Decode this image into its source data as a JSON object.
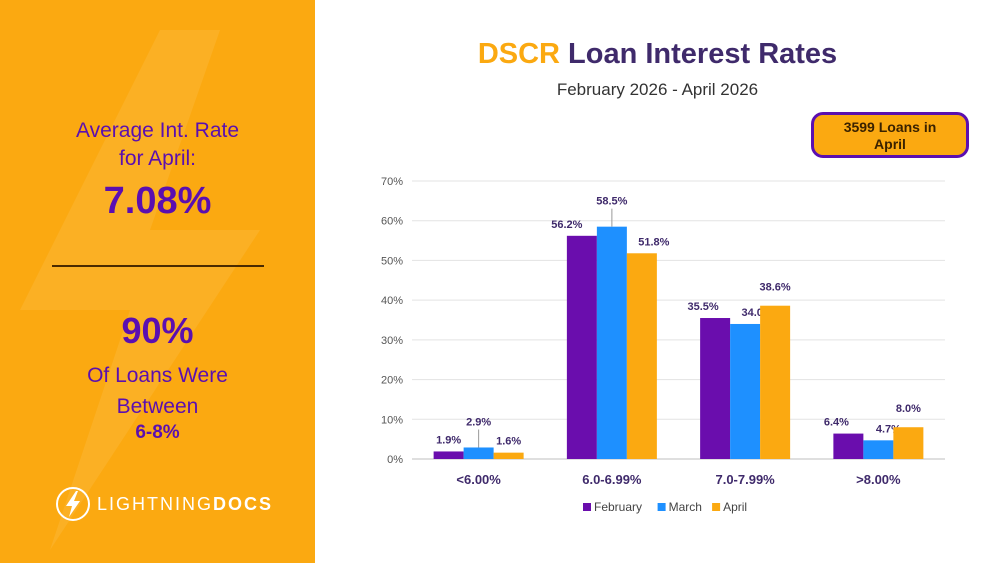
{
  "left_panel": {
    "avg_label_line1": "Average Int. Rate",
    "avg_label_line2": "for April:",
    "avg_value": "7.08%",
    "pct_value": "90%",
    "pct_label_line1": "Of Loans Were",
    "pct_label_line2": "Between",
    "pct_range": "6-8%",
    "logo_light": "LIGHTNING",
    "logo_bold": "DOCS"
  },
  "callout": {
    "line1": "3599 Loans in",
    "line2": "April"
  },
  "colors": {
    "orange": "#FBA911",
    "purple": "#5B0FB0",
    "february": "#6A0DAD",
    "march": "#1E90FF",
    "april": "#FBA911"
  },
  "chart_data": {
    "type": "bar",
    "title_accent": "DSCR",
    "title_rest": "Loan Interest Rates",
    "subtitle": "February 2026 - April 2026",
    "categories": [
      "<6.00%",
      "6.0-6.99%",
      "7.0-7.99%",
      ">8.00%"
    ],
    "series": [
      {
        "name": "February",
        "values": [
          1.9,
          56.2,
          35.5,
          6.4
        ],
        "color": "#6A0DAD"
      },
      {
        "name": "March",
        "values": [
          2.9,
          58.5,
          34.0,
          4.7
        ],
        "color": "#1E90FF"
      },
      {
        "name": "April",
        "values": [
          1.6,
          51.8,
          38.6,
          8.0
        ],
        "color": "#FBA911"
      }
    ],
    "ylim": [
      0,
      70
    ],
    "yticks": [
      "0%",
      "10%",
      "20%",
      "30%",
      "40%",
      "50%",
      "60%",
      "70%"
    ],
    "legend_position": "bottom",
    "grid": true
  }
}
